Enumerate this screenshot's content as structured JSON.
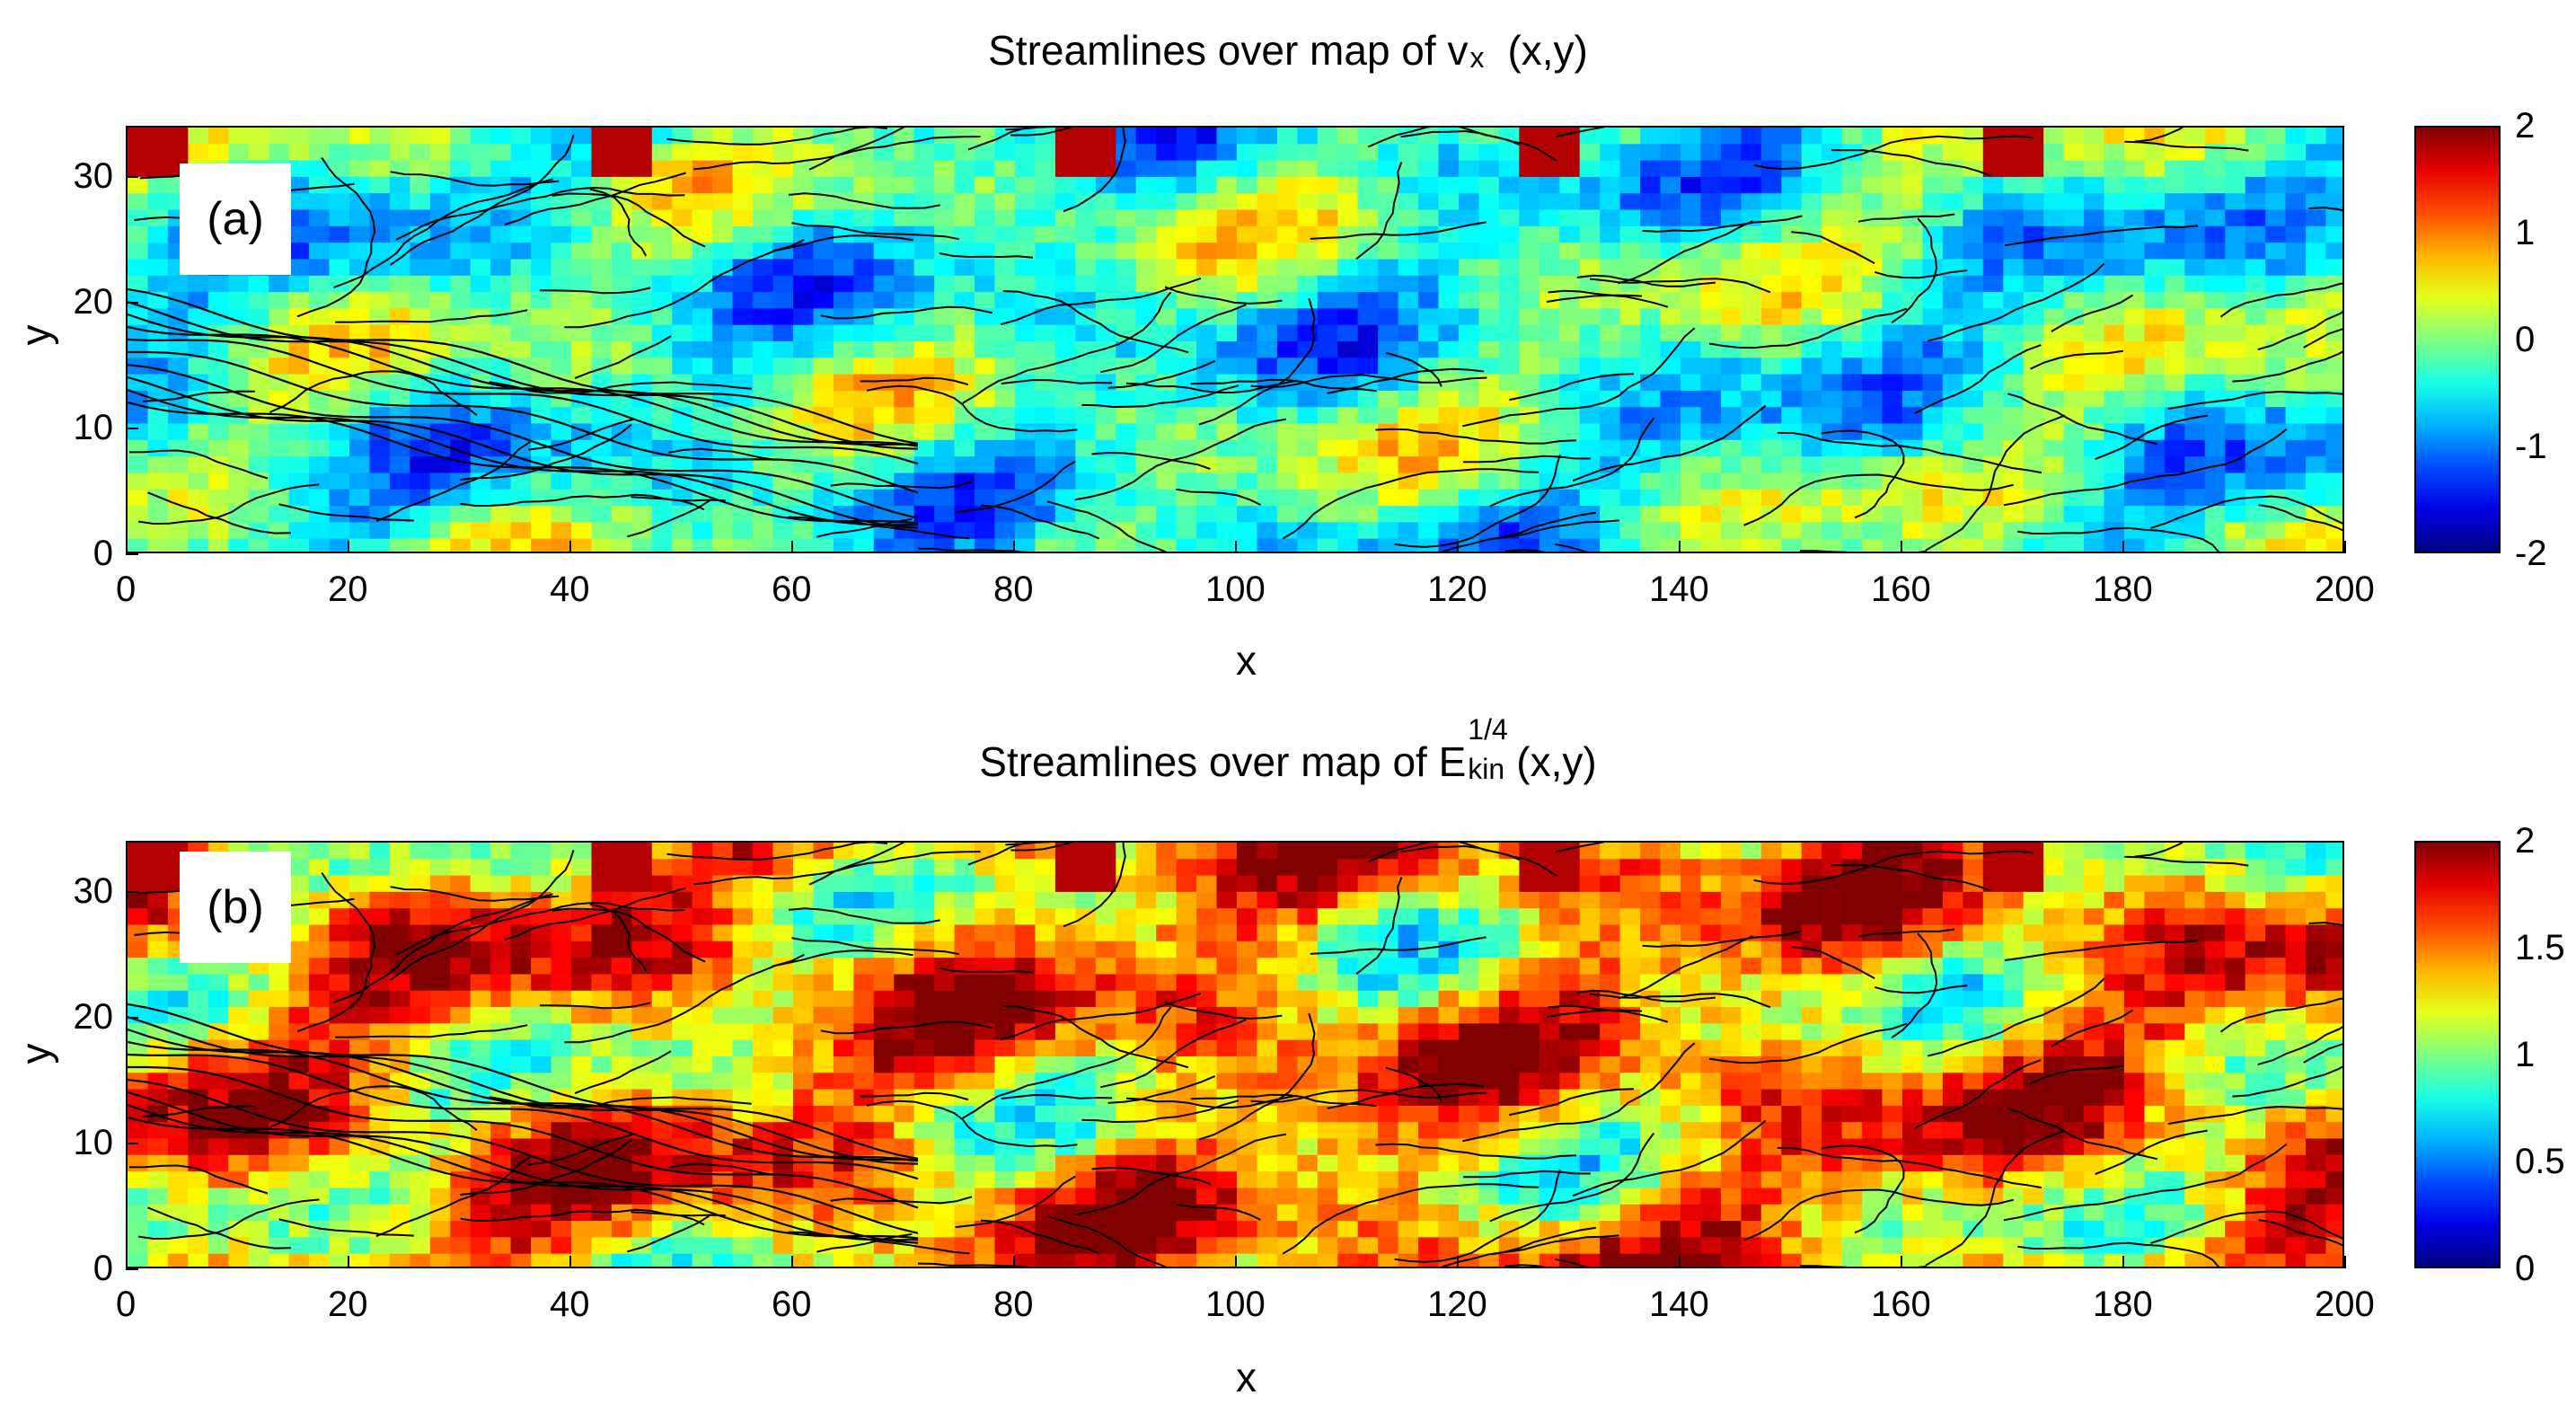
{
  "chart_data": [
    {
      "type": "heatmap",
      "panel_label": "(a)",
      "title": {
        "prefix": "Streamlines over map of v",
        "sub": "x",
        "suffix": "(x,y)"
      },
      "xlabel": "x",
      "ylabel": "y",
      "xlim": [
        0,
        200
      ],
      "ylim": [
        0,
        34
      ],
      "x_ticks": [
        "0",
        "20",
        "40",
        "60",
        "80",
        "100",
        "120",
        "140",
        "160",
        "180",
        "200"
      ],
      "y_ticks": [
        "0",
        "10",
        "20",
        "30"
      ],
      "colorbar": {
        "range": [
          -2,
          2
        ],
        "ticks": [
          "2",
          "1",
          "0",
          "-1",
          "-2"
        ],
        "colormap": "jet"
      },
      "overlay": "streamlines"
    },
    {
      "type": "heatmap",
      "panel_label": "(b)",
      "title": {
        "prefix": "Streamlines over map of E",
        "sup": "1/4",
        "sub": "kin",
        "suffix": "(x,y)"
      },
      "xlabel": "x",
      "ylabel": "y",
      "xlim": [
        0,
        200
      ],
      "ylim": [
        0,
        34
      ],
      "x_ticks": [
        "0",
        "20",
        "40",
        "60",
        "80",
        "100",
        "120",
        "140",
        "160",
        "180",
        "200"
      ],
      "y_ticks": [
        "0",
        "10",
        "20",
        "30"
      ],
      "colorbar": {
        "range": [
          0,
          2
        ],
        "ticks": [
          "2",
          "1.5",
          "1",
          "0.5",
          "0"
        ],
        "colormap": "jet"
      },
      "overlay": "streamlines"
    }
  ]
}
